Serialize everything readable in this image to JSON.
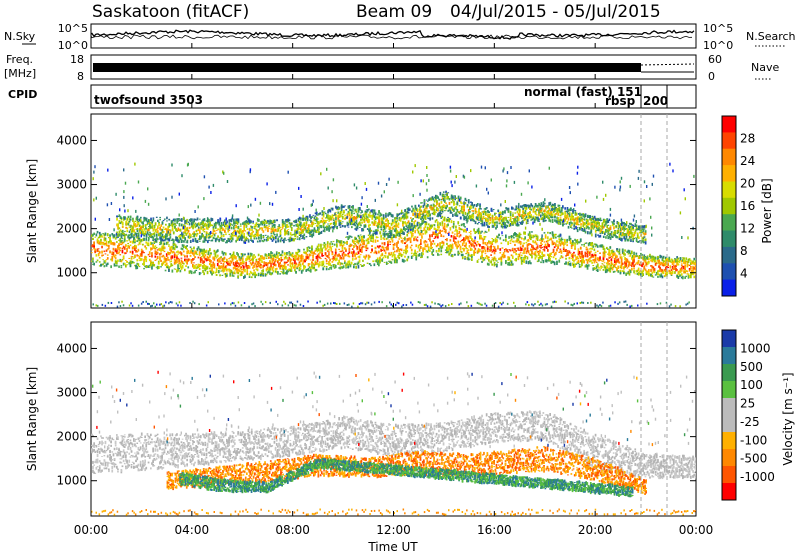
{
  "header": {
    "station": "Saskatoon (fitACF)",
    "beam": "Beam 09",
    "date_range": "04/Jul/2015 - 05/Jul/2015"
  },
  "top_panel": {
    "nsky_label": "N.Sky",
    "nsky_ticks": [
      "10^5",
      "10^0"
    ],
    "nsearch_label": "N.Search",
    "nsearch_ticks": [
      "10^5",
      "10^0"
    ],
    "freq_label": "Freq.",
    "freq_unit": "[MHz]",
    "freq_ticks": [
      "18",
      "8"
    ],
    "nave_label": "Nave",
    "nave_ticks": [
      "60",
      "0"
    ],
    "cpid_label": "CPID",
    "cpid_entries": [
      {
        "text": "twofsound 3503"
      },
      {
        "text": "normal (fast) 151"
      },
      {
        "text": "rbsp"
      },
      {
        "text": "200"
      }
    ]
  },
  "colorbar_power": {
    "label": "Power [dB]",
    "ticks": [
      "28",
      "24",
      "20",
      "16",
      "12",
      "8",
      "4"
    ],
    "colors": [
      "#ff0000",
      "#ff4400",
      "#ff8800",
      "#ffb000",
      "#d8dc00",
      "#a0c800",
      "#4aa850",
      "#2e8b6a",
      "#2a6a8a",
      "#1e50b0",
      "#0a20e8"
    ]
  },
  "colorbar_velocity": {
    "label": "Velocity [m s⁻¹]",
    "ticks": [
      "1000",
      "500",
      "100",
      "25",
      "-25",
      "-100",
      "-500",
      "-1000"
    ],
    "colors": [
      "#1a3aa8",
      "#2a7a9a",
      "#3a9a50",
      "#5ac040",
      "#bcbcbc",
      "#bcbcbc",
      "#ffb000",
      "#ff8800",
      "#ff5500",
      "#ff0000"
    ]
  },
  "chart_data": [
    {
      "type": "heatmap",
      "title": "",
      "xlabel": "",
      "ylabel": "Slant Range [km]",
      "xlim": [
        0,
        24
      ],
      "ylim": [
        200,
        4600
      ],
      "yticks": [
        "4000",
        "3000",
        "2000",
        "1000"
      ],
      "quantity": "Power [dB]",
      "bands": [
        {
          "name": "main",
          "points": [
            [
              0,
              1550,
              700
            ],
            [
              2,
              1450,
              650
            ],
            [
              4,
              1300,
              550
            ],
            [
              6,
              1150,
              500
            ],
            [
              8,
              1250,
              450
            ],
            [
              10,
              1450,
              650
            ],
            [
              12,
              1600,
              700
            ],
            [
              14,
              1850,
              800
            ],
            [
              16,
              1500,
              650
            ],
            [
              18,
              1600,
              650
            ],
            [
              20,
              1350,
              550
            ],
            [
              22,
              1150,
              450
            ],
            [
              24,
              1100,
              400
            ]
          ]
        },
        {
          "name": "upper",
          "points": [
            [
              1,
              2050,
              450
            ],
            [
              4,
              1950,
              500
            ],
            [
              8,
              1950,
              450
            ],
            [
              10,
              2300,
              450
            ],
            [
              12,
              2050,
              500
            ],
            [
              14,
              2600,
              450
            ],
            [
              16,
              2200,
              400
            ],
            [
              18,
              2400,
              400
            ],
            [
              20,
              2050,
              400
            ],
            [
              22,
              1850,
              350
            ]
          ]
        }
      ]
    },
    {
      "type": "heatmap",
      "title": "",
      "xlabel": "Time UT",
      "ylabel": "Slant Range [km]",
      "xlim": [
        0,
        24
      ],
      "ylim": [
        200,
        4600
      ],
      "xticks": [
        "00:00",
        "04:00",
        "08:00",
        "12:00",
        "16:00",
        "20:00",
        "00:00"
      ],
      "yticks": [
        "4000",
        "3000",
        "2000",
        "1000"
      ],
      "quantity": "Velocity [m s⁻¹]",
      "bands": [
        {
          "name": "ground-scatter",
          "points": [
            [
              0,
              1600,
              800
            ],
            [
              2,
              1650,
              750
            ],
            [
              4,
              1700,
              650
            ],
            [
              8,
              1900,
              600
            ],
            [
              10,
              2100,
              650
            ],
            [
              12,
              1900,
              650
            ],
            [
              14,
              2000,
              600
            ],
            [
              16,
              2200,
              600
            ],
            [
              18,
              2250,
              600
            ],
            [
              20,
              1650,
              700
            ],
            [
              22,
              1350,
              500
            ],
            [
              24,
              1300,
              450
            ]
          ]
        },
        {
          "name": "negative-velocity",
          "points": [
            [
              3,
              1000,
              350
            ],
            [
              6,
              1150,
              400
            ],
            [
              9,
              1350,
              450
            ],
            [
              11,
              1300,
              400
            ],
            [
              13,
              1400,
              500
            ],
            [
              15,
              1350,
              450
            ],
            [
              18,
              1500,
              500
            ],
            [
              20,
              1250,
              450
            ],
            [
              22,
              850,
              300
            ]
          ]
        },
        {
          "name": "positive-velocity",
          "points": [
            [
              3.5,
              1050,
              250
            ],
            [
              5,
              900,
              250
            ],
            [
              7,
              850,
              200
            ],
            [
              9,
              1400,
              200
            ],
            [
              21.5,
              750,
              200
            ]
          ]
        }
      ]
    }
  ],
  "xaxis": {
    "label": "Time UT"
  }
}
